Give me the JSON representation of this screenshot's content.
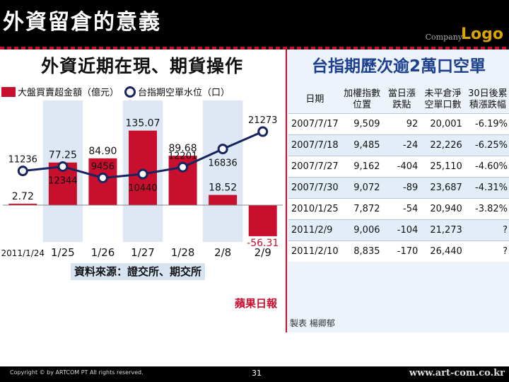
{
  "slide": {
    "title": "外資留倉的意義",
    "company": "Company",
    "logo": "Logo",
    "page_number": "31",
    "copyright": "Copyright © by ARTCOM PT  All rights reserved.",
    "site": "www.art-com.co.kr"
  },
  "left_chart": {
    "title": "外資近期在現、期貨操作",
    "legend_bar": "大盤買賣超金額（億元）",
    "legend_line": "台指期空單水位（口）",
    "source": "資料來源：證交所、期交所",
    "newspaper_mark": "蘋果日報"
  },
  "chart_data": {
    "type": "bar",
    "categories": [
      "2011/1/24",
      "1/25",
      "1/26",
      "1/27",
      "1/28",
      "2/8",
      "2/9"
    ],
    "series": [
      {
        "name": "大盤買賣超金額（億元）",
        "values": [
          2.72,
          77.25,
          84.9,
          135.07,
          89.68,
          18.52,
          -56.31
        ],
        "labels": [
          "2.72",
          "77.25",
          "84.90",
          "135.07",
          "89.68",
          "18.52",
          "-56.31"
        ],
        "color": "#c8102e"
      },
      {
        "name": "台指期空單水位（口）",
        "values": [
          11236,
          12344,
          9456,
          10440,
          12201,
          16836,
          21273
        ],
        "labels": [
          "11236",
          "12344",
          "9456",
          "10440",
          "12201",
          "16836",
          "21273"
        ],
        "color": "#17245f"
      }
    ]
  },
  "right_table": {
    "title": "台指期歷次逾2萬口空單",
    "headers": [
      "日期",
      "加權指數位置",
      "當日漲跌點",
      "未平倉淨空單口數",
      "30日後累積漲跌幅"
    ],
    "rows": [
      [
        "2007/7/17",
        "9,509",
        "92",
        "20,001",
        "-6.19%"
      ],
      [
        "2007/7/18",
        "9,485",
        "-24",
        "22,226",
        "-6.25%"
      ],
      [
        "2007/7/27",
        "9,162",
        "-404",
        "25,110",
        "-4.60%"
      ],
      [
        "2007/7/30",
        "9,072",
        "-89",
        "23,687",
        "-4.31%"
      ],
      [
        "2010/1/25",
        "7,872",
        "-54",
        "20,940",
        "-3.82%"
      ],
      [
        "2011/2/9",
        "9,006",
        "-104",
        "21,273",
        "?"
      ],
      [
        "2011/2/10",
        "8,835",
        "-170",
        "26,440",
        "?"
      ]
    ],
    "footer": "製表 楊卿郁"
  },
  "colors": {
    "accent": "#c8102e",
    "line": "#17245f",
    "table_title": "#1d3f8f"
  }
}
